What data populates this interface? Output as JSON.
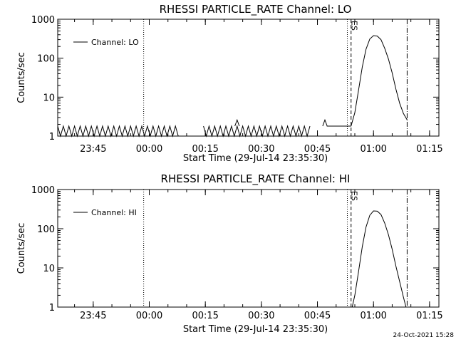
{
  "chart_data": [
    {
      "type": "line",
      "title": "RHESSI PARTICLE_RATE Channel: LO",
      "xlabel": "Start Time (29-Jul-14 23:35:30)",
      "ylabel": "Counts/sec",
      "yscale": "log",
      "xlim_minutes_from_start": [
        0,
        102
      ],
      "ylim": [
        1,
        1000
      ],
      "x_tick_labels": [
        "23:45",
        "00:00",
        "00:15",
        "00:30",
        "00:45",
        "01:00",
        "01:15"
      ],
      "x_tick_minutes": [
        9.5,
        24.5,
        39.5,
        54.5,
        69.5,
        84.5,
        99.5
      ],
      "y_tick_labels": [
        "1",
        "10",
        "100",
        "1000"
      ],
      "y_tick_values": [
        1,
        10,
        100,
        1000
      ],
      "legend": {
        "entry": "Channel: LO",
        "placement": "top-left"
      },
      "marker_label": "ES",
      "vertical_lines": [
        {
          "style": "dotted",
          "minutes": 23
        },
        {
          "style": "dotted",
          "minutes": 77.5
        },
        {
          "style": "dashed",
          "minutes": 78.5
        },
        {
          "style": "dash-dot",
          "minutes": 93.5
        }
      ],
      "series": [
        {
          "background_level_low": 1,
          "background_level_high": 1.8,
          "background_spans_minutes": [
            [
              0,
              32.5
            ],
            [
              39,
              67.5
            ]
          ],
          "spikes": [
            {
              "minutes": 48,
              "value": 2.6
            },
            {
              "minutes": 71.5,
              "value": 2.6
            }
          ],
          "flat_segments": [
            {
              "from": 72,
              "to": 78.5,
              "value": 1.8
            }
          ],
          "x": [
            78.5,
            79.5,
            80.5,
            81.5,
            82.5,
            83.5,
            84.5,
            85.5,
            86.5,
            87.5,
            88.5,
            89.5,
            90.5,
            91.5,
            92.5,
            93.5
          ],
          "y": [
            1.8,
            4,
            15,
            60,
            170,
            310,
            380,
            370,
            300,
            180,
            95,
            42,
            16,
            7,
            3.8,
            2.6
          ]
        }
      ]
    },
    {
      "type": "line",
      "title": "RHESSI PARTICLE_RATE Channel: HI",
      "xlabel": "Start Time (29-Jul-14 23:35:30)",
      "ylabel": "Counts/sec",
      "yscale": "log",
      "xlim_minutes_from_start": [
        0,
        102
      ],
      "ylim": [
        1,
        1000
      ],
      "x_tick_labels": [
        "23:45",
        "00:00",
        "00:15",
        "00:30",
        "00:45",
        "01:00",
        "01:15"
      ],
      "x_tick_minutes": [
        9.5,
        24.5,
        39.5,
        54.5,
        69.5,
        84.5,
        99.5
      ],
      "y_tick_labels": [
        "1",
        "10",
        "100",
        "1000"
      ],
      "y_tick_values": [
        1,
        10,
        100,
        1000
      ],
      "legend": {
        "entry": "Channel: HI",
        "placement": "top-left"
      },
      "marker_label": "ES",
      "vertical_lines": [
        {
          "style": "dotted",
          "minutes": 23
        },
        {
          "style": "dotted",
          "minutes": 77.5
        },
        {
          "style": "dashed",
          "minutes": 78.5
        },
        {
          "style": "dash-dot",
          "minutes": 93.5
        }
      ],
      "series": [
        {
          "x": [
            78.8,
            79.5,
            80.5,
            81.5,
            82.5,
            83.5,
            84.5,
            85.5,
            86.5,
            87.5,
            88.5,
            89.5,
            90.5,
            91.5,
            92.5,
            93.2
          ],
          "y": [
            1,
            2,
            8,
            35,
            110,
            220,
            285,
            280,
            230,
            140,
            70,
            30,
            11,
            4.5,
            1.8,
            1
          ]
        }
      ]
    }
  ],
  "footer": {
    "timestamp": "24-Oct-2021 15:28"
  }
}
